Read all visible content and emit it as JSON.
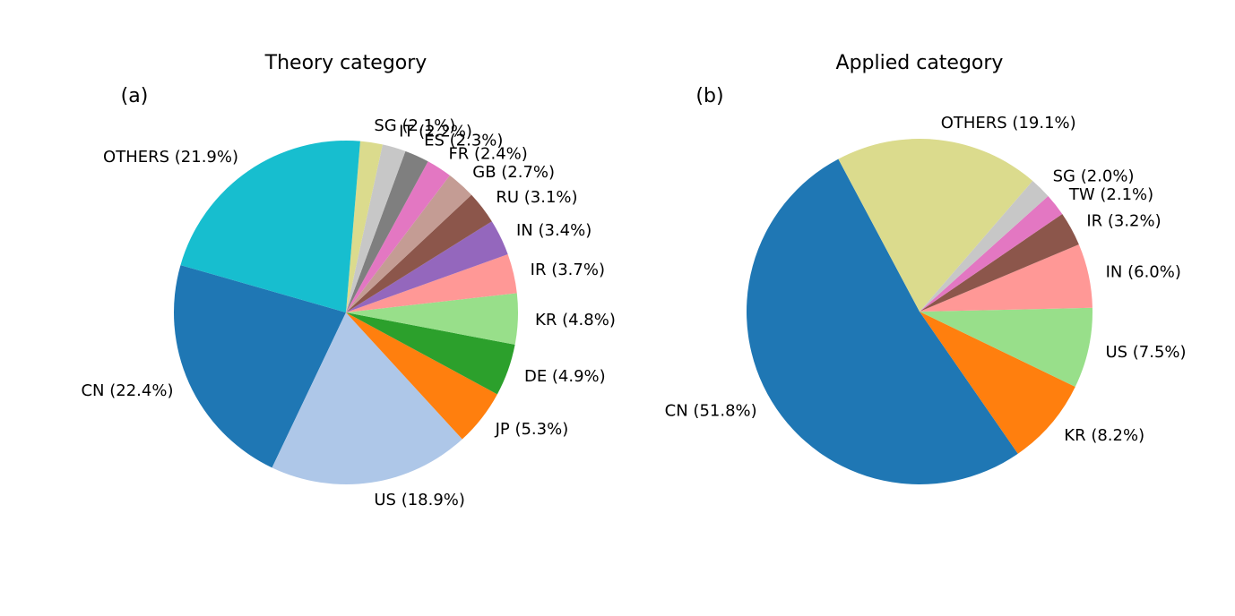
{
  "chart_data": [
    {
      "type": "pie",
      "title": "Theory category",
      "panel_label": "(a)",
      "slices": [
        {
          "name": "CN",
          "value": 22.4,
          "label": "CN (22.4%)",
          "color": "#1f77b4"
        },
        {
          "name": "US",
          "value": 18.9,
          "label": "US (18.9%)",
          "color": "#aec7e8"
        },
        {
          "name": "JP",
          "value": 5.3,
          "label": "JP (5.3%)",
          "color": "#ff7f0e"
        },
        {
          "name": "DE",
          "value": 4.9,
          "label": "DE (4.9%)",
          "color": "#2ca02c"
        },
        {
          "name": "KR",
          "value": 4.8,
          "label": "KR (4.8%)",
          "color": "#98df8a"
        },
        {
          "name": "IR",
          "value": 3.7,
          "label": "IR (3.7%)",
          "color": "#ff9896"
        },
        {
          "name": "IN",
          "value": 3.4,
          "label": "IN (3.4%)",
          "color": "#9467bd"
        },
        {
          "name": "RU",
          "value": 3.1,
          "label": "RU (3.1%)",
          "color": "#8c564b"
        },
        {
          "name": "GB",
          "value": 2.7,
          "label": "GB (2.7%)",
          "color": "#c49c94"
        },
        {
          "name": "FR",
          "value": 2.4,
          "label": "FR (2.4%)",
          "color": "#e377c2"
        },
        {
          "name": "ES",
          "value": 2.3,
          "label": "ES (2.3%)",
          "color": "#7f7f7f"
        },
        {
          "name": "IT",
          "value": 2.2,
          "label": "IT (2.2%)",
          "color": "#c7c7c7"
        },
        {
          "name": "SG",
          "value": 2.1,
          "label": "SG (2.1%)",
          "color": "#dbdb8d"
        },
        {
          "name": "OTHERS",
          "value": 21.9,
          "label": "OTHERS (21.9%)",
          "color": "#17becf"
        }
      ]
    },
    {
      "type": "pie",
      "title": "Applied category",
      "panel_label": "(b)",
      "slices": [
        {
          "name": "CN",
          "value": 51.8,
          "label": "CN (51.8%)",
          "color": "#1f77b4"
        },
        {
          "name": "KR",
          "value": 8.2,
          "label": "KR (8.2%)",
          "color": "#ff7f0e"
        },
        {
          "name": "US",
          "value": 7.5,
          "label": "US (7.5%)",
          "color": "#98df8a"
        },
        {
          "name": "IN",
          "value": 6.0,
          "label": "IN (6.0%)",
          "color": "#ff9896"
        },
        {
          "name": "IR",
          "value": 3.2,
          "label": "IR (3.2%)",
          "color": "#8c564b"
        },
        {
          "name": "TW",
          "value": 2.1,
          "label": "TW (2.1%)",
          "color": "#e377c2"
        },
        {
          "name": "SG",
          "value": 2.0,
          "label": "SG (2.0%)",
          "color": "#c7c7c7"
        },
        {
          "name": "OTHERS",
          "value": 19.1,
          "label": "OTHERS (19.1%)",
          "color": "#dbdb8d"
        }
      ]
    }
  ]
}
